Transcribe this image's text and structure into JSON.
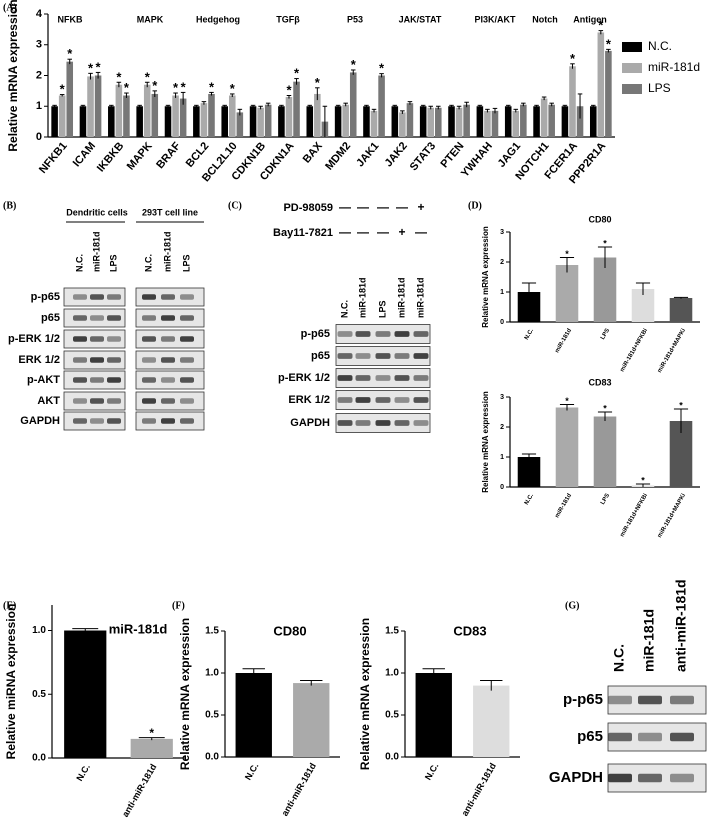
{
  "panel_labels": {
    "A": "(A)",
    "B": "(B)",
    "C": "(C)",
    "D": "(D)",
    "E": "(E)",
    "F": "(F)",
    "G": "(G)"
  },
  "chart_data": [
    {
      "type": "bar",
      "ylabel": "Relative mRNA expression",
      "categories": [
        "NFKB1",
        "ICAM",
        "IKBKB",
        "MAPK",
        "BRAF",
        "BCL2",
        "BCL2L10",
        "CDKN1B",
        "CDKN1A",
        "BAX",
        "MDM2",
        "JAK1",
        "JAK2",
        "STAT3",
        "PTEN",
        "YWHAH",
        "JAG1",
        "NOTCH1",
        "FCER1A",
        "PPP2R1A"
      ],
      "groups": [
        {
          "label": "NFKB",
          "color": "#3cb371"
        },
        {
          "label": "MAPK",
          "color": "#3cb371"
        },
        {
          "label": "Hedgehog",
          "color": "#000000"
        },
        {
          "label": "TGFβ",
          "color": "#000000"
        },
        {
          "label": "P53",
          "color": "#000000"
        },
        {
          "label": "JAK/STAT",
          "color": "#000000"
        },
        {
          "label": "PI3K/AKT",
          "color": "#000000"
        },
        {
          "label": "Notch",
          "color": "#000000"
        },
        {
          "label": "Antigen",
          "color": "#000000"
        }
      ],
      "series": [
        {
          "name": "N.C.",
          "color": "#000000",
          "values": [
            1,
            1,
            1,
            1,
            1,
            1,
            1,
            1,
            1,
            1,
            1,
            1,
            1,
            1,
            1,
            1,
            1,
            1,
            1,
            1
          ],
          "errors": [
            0.03,
            0.03,
            0.03,
            0.03,
            0.03,
            0.03,
            0.03,
            0.03,
            0.03,
            0.03,
            0.03,
            0.03,
            0.03,
            0.03,
            0.03,
            0.03,
            0.03,
            0.03,
            0.03,
            0.03
          ]
        },
        {
          "name": "miR-181d",
          "color": "#aaaaaa",
          "values": [
            1.35,
            1.97,
            1.7,
            1.7,
            1.35,
            1.1,
            1.35,
            0.95,
            1.3,
            1.4,
            1.05,
            0.85,
            0.8,
            0.95,
            0.95,
            0.85,
            0.85,
            1.25,
            2.3,
            3.4
          ],
          "errors": [
            0.03,
            0.1,
            0.08,
            0.08,
            0.08,
            0.05,
            0.05,
            0.05,
            0.05,
            0.2,
            0.05,
            0.05,
            0.05,
            0.05,
            0.05,
            0.05,
            0.05,
            0.05,
            0.08,
            0.06
          ],
          "stars": [
            "*",
            "*",
            "*",
            "*",
            "*",
            null,
            "*",
            null,
            "*",
            "*",
            null,
            null,
            null,
            null,
            null,
            null,
            null,
            null,
            "*",
            "*"
          ]
        },
        {
          "name": "LPS",
          "color": "#777777",
          "values": [
            2.45,
            2.0,
            1.35,
            1.4,
            1.25,
            1.4,
            0.8,
            1.05,
            1.8,
            0.5,
            2.1,
            2.0,
            1.1,
            0.95,
            1.05,
            0.85,
            1.05,
            1.05,
            1.0,
            2.8
          ],
          "errors": [
            0.08,
            0.1,
            0.08,
            0.1,
            0.2,
            0.05,
            0.1,
            0.05,
            0.1,
            0.5,
            0.08,
            0.06,
            0.05,
            0.05,
            0.08,
            0.08,
            0.05,
            0.05,
            0.4,
            0.05
          ],
          "stars": [
            "*",
            "*",
            "*",
            "*",
            "*",
            "*",
            null,
            null,
            "*",
            null,
            "*",
            "*",
            null,
            null,
            null,
            null,
            null,
            null,
            null,
            "*"
          ]
        }
      ],
      "legend": "right",
      "ylim": [
        0,
        4
      ],
      "yticks": [
        0,
        1,
        2,
        3,
        4
      ]
    },
    {
      "type": "bar",
      "title": "CD80",
      "ylabel": "Relative mRNA expression",
      "categories": [
        "N.C.",
        "miR-181d",
        "LPS",
        "miR-181d+NFKBi",
        "miR-181d+MAPKi"
      ],
      "series": [
        {
          "colors": [
            "#000000",
            "#aaaaaa",
            "#999999",
            "#dddddd",
            "#555555"
          ],
          "values": [
            1,
            1.9,
            2.15,
            1.1,
            0.8
          ],
          "errors": [
            0.3,
            0.25,
            0.35,
            0.2,
            0.02
          ],
          "stars": [
            null,
            "*",
            "*",
            null,
            null
          ]
        }
      ],
      "ylim": [
        0,
        3
      ],
      "yticks": [
        0,
        1,
        2,
        3
      ]
    },
    {
      "type": "bar",
      "title": "CD83",
      "ylabel": "Relative mRNA expression",
      "categories": [
        "N.C.",
        "miR-181d",
        "LPS",
        "miR-181d+NFKBi",
        "miR-181d+MAPKi"
      ],
      "series": [
        {
          "colors": [
            "#000000",
            "#aaaaaa",
            "#999999",
            "#dddddd",
            "#555555"
          ],
          "values": [
            1,
            2.65,
            2.35,
            0.05,
            2.2
          ],
          "errors": [
            0.1,
            0.1,
            0.15,
            0.05,
            0.4
          ],
          "stars": [
            null,
            "*",
            "*",
            "*",
            "*"
          ]
        }
      ],
      "ylim": [
        0,
        3
      ],
      "yticks": [
        0,
        1,
        2,
        3
      ]
    },
    {
      "type": "bar",
      "title": "miR-181d",
      "ylabel": "Relative miRNA expression",
      "categories": [
        "N.C.",
        "anti-miR-181d"
      ],
      "series": [
        {
          "colors": [
            "#000000",
            "#aaaaaa"
          ],
          "values": [
            1.0,
            0.15
          ],
          "errors": [
            0.015,
            0.01
          ],
          "stars": [
            null,
            "*"
          ]
        }
      ],
      "ylim": [
        0,
        1.2
      ],
      "yticks": [
        {
          "value": 0,
          "label": "0.0"
        },
        0.5,
        {
          "value": 1,
          "label": "1.0"
        }
      ]
    },
    {
      "type": "bar",
      "title": "CD80",
      "ylabel": "Relative mRNA expression",
      "categories": [
        "N.C.",
        "anti-miR-181d"
      ],
      "series": [
        {
          "colors": [
            "#000000",
            "#aaaaaa"
          ],
          "values": [
            1.0,
            0.88
          ],
          "errors": [
            0.05,
            0.03
          ]
        }
      ],
      "ylim": [
        0,
        1.5
      ],
      "yticks": [
        {
          "value": 0,
          "label": "0.0"
        },
        0.5,
        {
          "value": 1,
          "label": "1.0"
        },
        1.5
      ]
    },
    {
      "type": "bar",
      "title": "CD83",
      "ylabel": "Relative mRNA expression",
      "categories": [
        "N.C.",
        "anti-miR-181d"
      ],
      "series": [
        {
          "colors": [
            "#000000",
            "#dddddd"
          ],
          "values": [
            1.0,
            0.85
          ],
          "errors": [
            0.05,
            0.06
          ]
        }
      ],
      "ylim": [
        0,
        1.5
      ],
      "yticks": [
        {
          "value": 0,
          "label": "0.0"
        },
        0.5,
        {
          "value": 1,
          "label": "1.0"
        },
        1.5
      ]
    }
  ],
  "blot_b": {
    "groups": [
      "Dendritic cells",
      "293T cell line"
    ],
    "lanes": [
      "N.C.",
      "miR-181d",
      "LPS",
      "N.C.",
      "miR-181d",
      "LPS"
    ],
    "rows": [
      "p-p65",
      "p65",
      "p-ERK 1/2",
      "ERK 1/2",
      "p-AKT",
      "AKT",
      "GAPDH"
    ]
  },
  "blot_c": {
    "treatments": [
      {
        "name": "PD-98059",
        "signs": [
          "—",
          "—",
          "—",
          "—",
          "+"
        ]
      },
      {
        "name": "Bay11-7821",
        "signs": [
          "—",
          "—",
          "—",
          "+",
          "—"
        ]
      }
    ],
    "lanes": [
      "N.C.",
      "miR-181d",
      "LPS",
      "miR-181d",
      "miR-181d"
    ],
    "rows": [
      "p-p65",
      "p65",
      "p-ERK 1/2",
      "ERK 1/2",
      "GAPDH"
    ]
  },
  "blot_g": {
    "lanes": [
      "N.C.",
      "miR-181d",
      "anti-miR-181d"
    ],
    "rows": [
      "p-p65",
      "p65",
      "GAPDH"
    ]
  }
}
